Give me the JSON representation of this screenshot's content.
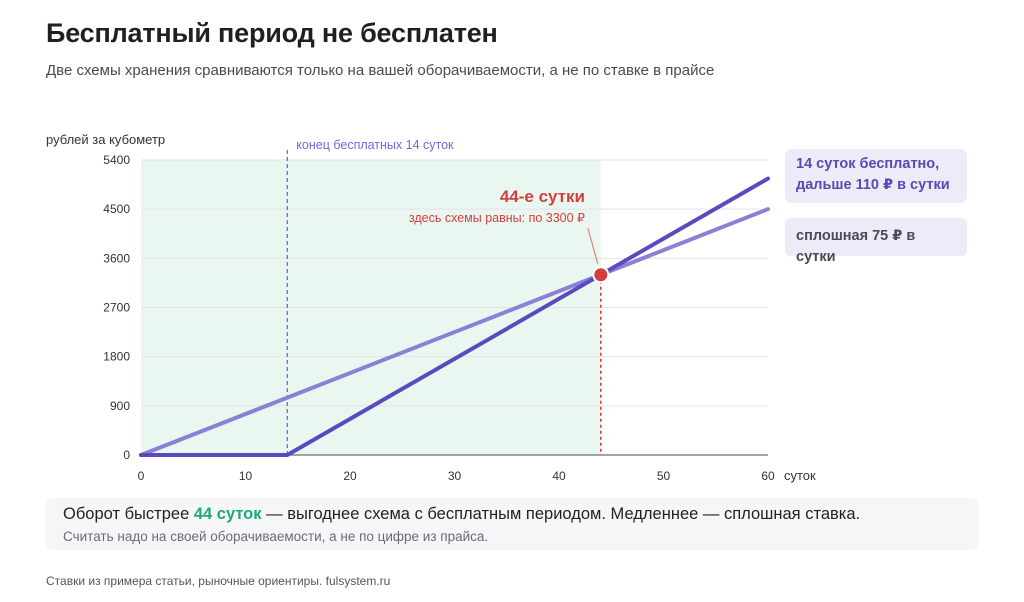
{
  "page": {
    "title": "Бесплатный период не бесплатен",
    "subtitle": "Две схемы хранения сравниваются только на вашей оборачиваемости, а не по ставке в прайсе"
  },
  "chart_data": {
    "type": "line",
    "ylabel": "рублей за кубометр",
    "xlabel": "суток",
    "xlim": [
      0,
      60
    ],
    "ylim": [
      0,
      5400
    ],
    "x_ticks": [
      0,
      10,
      20,
      30,
      40,
      50,
      60
    ],
    "y_ticks": [
      0,
      900,
      1800,
      2700,
      3600,
      4500,
      5400
    ],
    "grid": "horizontal",
    "series": [
      {
        "name": "сплошная 75 ₽ в сутки",
        "color": "#8b80d6",
        "points": [
          [
            0,
            0
          ],
          [
            60,
            4500
          ]
        ]
      },
      {
        "name": "14 суток бесплатно, дальше 110 ₽ в сутки",
        "color": "#5b49bf",
        "points": [
          [
            0,
            0
          ],
          [
            14,
            0
          ],
          [
            60,
            5060
          ]
        ]
      }
    ],
    "free_period_marker": {
      "x": 14,
      "label": "конец бесплатных 14 суток",
      "color": "#6a6adf"
    },
    "crossover": {
      "x": 44,
      "y": 3300,
      "label": "44-е сутки",
      "sublabel": "здесь схемы равны: по 3300 ₽",
      "color": "#d63d3d"
    },
    "shaded_region": {
      "x_from": 0,
      "x_to": 44,
      "color": "#eaf7f1"
    }
  },
  "legend": {
    "free_line1": "14 суток бесплатно,",
    "free_line2": "дальше 110 ₽ в сутки",
    "flat": "сплошная 75 ₽ в сутки"
  },
  "summary": {
    "before": "Оборот быстрее ",
    "highlight": "44 суток",
    "after": " — выгоднее схема с бесплатным периодом. Медленнее — сплошная ставка.",
    "sub": "Считать надо на своей оборачиваемости, а не по цифре из прайса."
  },
  "footer": "Ставки из примера статьи, рыночные ориентиры. fulsystem.ru"
}
